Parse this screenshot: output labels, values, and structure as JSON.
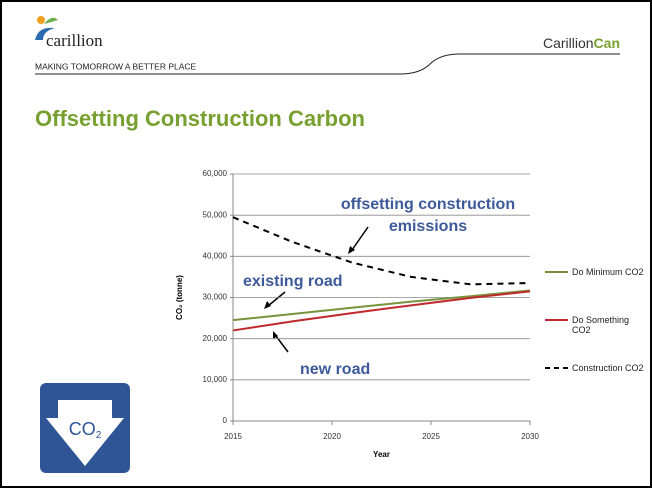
{
  "header": {
    "logo": "carillion",
    "tagline": "MAKING TOMORROW A BETTER PLACE",
    "brand": "Carillion",
    "brand_accent": "Can"
  },
  "title": "Offsetting Construction Carbon",
  "icon": {
    "text": "CO",
    "sub": "2"
  },
  "chart_data": {
    "type": "line",
    "xlabel": "Year",
    "ylabel": "CO₂ (tonne)",
    "x": [
      2015,
      2018,
      2021,
      2024,
      2027,
      2030
    ],
    "series": [
      {
        "name": "Do Minimum CO2",
        "color": "#77933c",
        "dash": false,
        "values": [
          24500,
          26000,
          27500,
          29000,
          30300,
          31700
        ]
      },
      {
        "name": "Do Something CO2",
        "color": "#c0282d",
        "dash": false,
        "values": [
          22000,
          24200,
          26200,
          28100,
          29900,
          31500
        ]
      },
      {
        "name": "Construction CO2",
        "color": "#000000",
        "dash": true,
        "values": [
          49500,
          43500,
          38500,
          35000,
          33200,
          33500
        ]
      }
    ],
    "xlim": [
      2015,
      2030
    ],
    "xticks": [
      2015,
      2020,
      2025,
      2030
    ],
    "ylim": [
      0,
      60000
    ],
    "yticks": [
      0,
      {
        "value": 10000,
        "label": "10,000"
      },
      {
        "value": 20000,
        "label": "20,000"
      },
      {
        "value": 30000,
        "label": "30,000"
      },
      {
        "value": 40000,
        "label": "40,000"
      },
      {
        "value": 50000,
        "label": "50,000"
      },
      {
        "value": 60000,
        "label": "60,000"
      }
    ],
    "grid": true,
    "legend": "right",
    "annotations": [
      "offsetting construction emissions",
      "existing road",
      "new road"
    ]
  }
}
